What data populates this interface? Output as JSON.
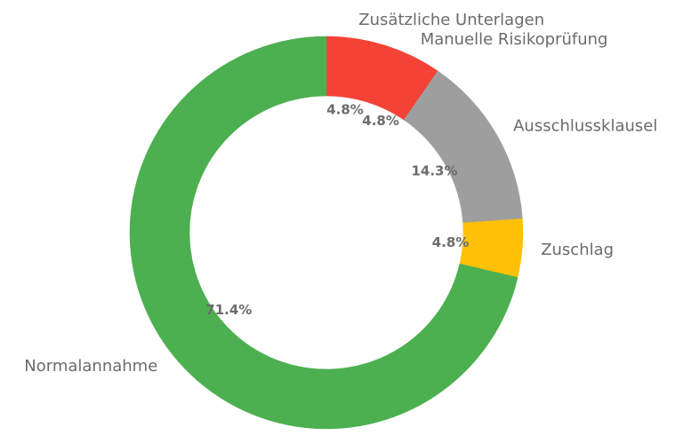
{
  "chart_data": {
    "type": "pie",
    "style": "donut",
    "start_angle_deg": 90,
    "direction": "clockwise",
    "legend": "none",
    "label_color": "#6b6b6b",
    "slices": [
      {
        "label": "Zusätzliche Unterlagen",
        "value": 4.8,
        "pct_label": "4.8%",
        "color": "#f44336"
      },
      {
        "label": "Manuelle Risikoprüfung",
        "value": 4.8,
        "pct_label": "4.8%",
        "color": "#f44336"
      },
      {
        "label": "Ausschlussklausel",
        "value": 14.3,
        "pct_label": "14.3%",
        "color": "#9e9e9e"
      },
      {
        "label": "Zuschlag",
        "value": 4.8,
        "pct_label": "4.8%",
        "color": "#ffc107"
      },
      {
        "label": "Normalannahme",
        "value": 71.4,
        "pct_label": "71.4%",
        "color": "#4caf50"
      }
    ]
  }
}
